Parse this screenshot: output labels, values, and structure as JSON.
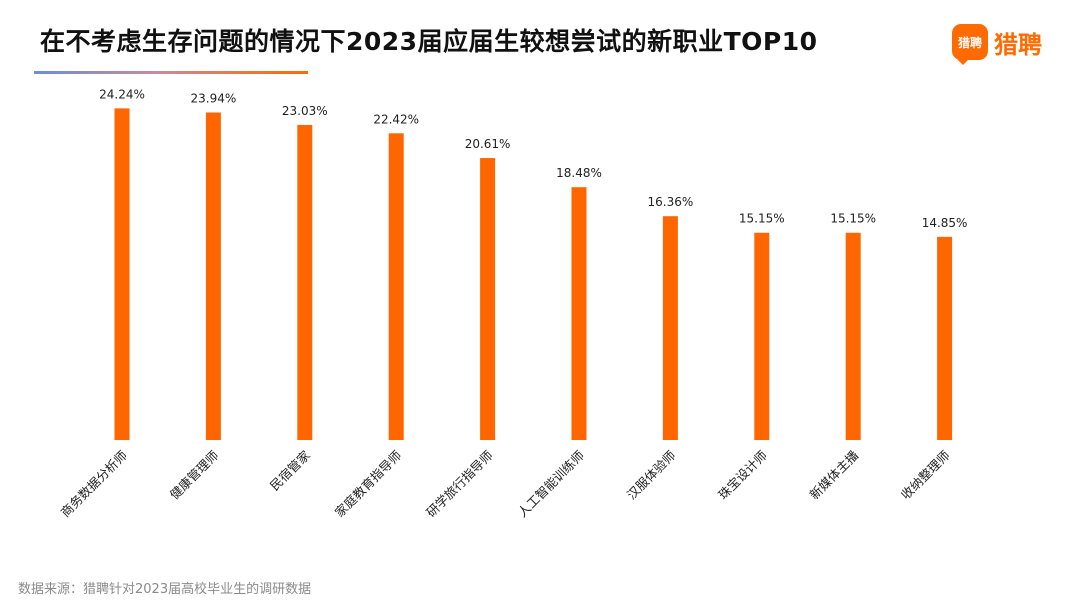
{
  "header": {
    "title": "在不考虑生存问题的情况下2023届应届生较想尝试的新职业TOP10"
  },
  "brand": {
    "icon_text": "猎聘",
    "name": "猎聘",
    "icon": "speech-bubble-logo-icon",
    "color": "#FF6B00"
  },
  "footer": {
    "source": "数据来源：猎聘针对2023届高校毕业生的调研数据"
  },
  "chart_data": {
    "type": "bar",
    "title": "在不考虑生存问题的情况下2023届应届生较想尝试的新职业TOP10",
    "xlabel": "",
    "ylabel": "",
    "ylim": [
      0,
      25
    ],
    "grid": false,
    "bar_color": "#FF6600",
    "value_suffix": "%",
    "categories": [
      "商务数据分析师",
      "健康管理师",
      "民宿管家",
      "家庭教育指导师",
      "研学旅行指导师",
      "人工智能训练师",
      "汉服体验师",
      "珠宝设计师",
      "新媒体主播",
      "收纳整理师"
    ],
    "values": [
      24.24,
      23.94,
      23.03,
      22.42,
      20.61,
      18.48,
      16.36,
      15.15,
      15.15,
      14.85
    ],
    "labels": [
      "24.24%",
      "23.94%",
      "23.03%",
      "22.42%",
      "20.61%",
      "18.48%",
      "16.36%",
      "15.15%",
      "15.15%",
      "14.85%"
    ]
  }
}
